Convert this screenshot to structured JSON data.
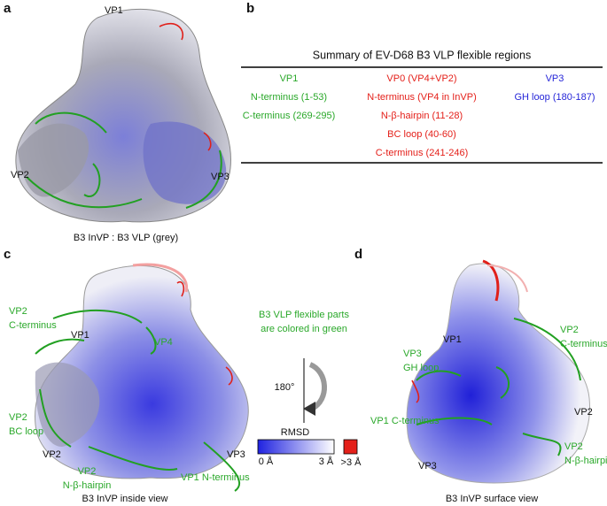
{
  "panel_a": {
    "letter": "a",
    "labels": [
      "VP1",
      "VP2",
      "VP3"
    ],
    "caption": "B3 InVP : B3 VLP (grey)"
  },
  "panel_b": {
    "letter": "b",
    "title": "Summary of EV-D68 B3 VLP flexible regions",
    "columns": [
      {
        "header": "VP1",
        "items": [
          "N-terminus (1-53)",
          "C-terminus (269-295)"
        ]
      },
      {
        "header": "VP0 (VP4+VP2)",
        "items": [
          "N-terminus (VP4 in InVP)",
          "N-β-hairpin (11-28)",
          "BC loop (40-60)",
          "C-terminus (241-246)"
        ]
      },
      {
        "header": "VP3",
        "items": [
          "GH loop (180-187)"
        ]
      }
    ]
  },
  "panel_c": {
    "letter": "c",
    "labels": {
      "vp1": [
        "VP1"
      ],
      "vp4": [
        "VP4"
      ],
      "vp2_c": [
        "VP2",
        "C-terminus"
      ],
      "vp2_bc": [
        "VP2",
        "BC loop"
      ],
      "vp2": [
        "VP2"
      ],
      "vp2_n": [
        "VP2",
        "N-β-hairpin"
      ],
      "vp3": [
        "VP3"
      ],
      "vp1_n": [
        "VP1 N-terminus"
      ]
    },
    "caption": "B3 InVP inside view"
  },
  "middle": {
    "note": [
      "B3 VLP flexible parts",
      "are colored in green"
    ],
    "rotation": "180°",
    "colorbar_title": "RMSD",
    "colorbar_min": "0 Å",
    "colorbar_max": "3 Å",
    "colorbar_over": ">3 Å"
  },
  "panel_d": {
    "letter": "d",
    "labels": {
      "vp1": [
        "VP1"
      ],
      "vp2_c": [
        "VP2",
        "C-terminus"
      ],
      "vp3_gh": [
        "VP3",
        "GH loop"
      ],
      "vp1_c": [
        "VP1 C-terminus"
      ],
      "vp2": [
        "VP2"
      ],
      "vp2_n": [
        "VP2",
        "N-β-hairpin"
      ],
      "vp3": [
        "VP3"
      ]
    },
    "caption": "B3 InVP surface view"
  }
}
